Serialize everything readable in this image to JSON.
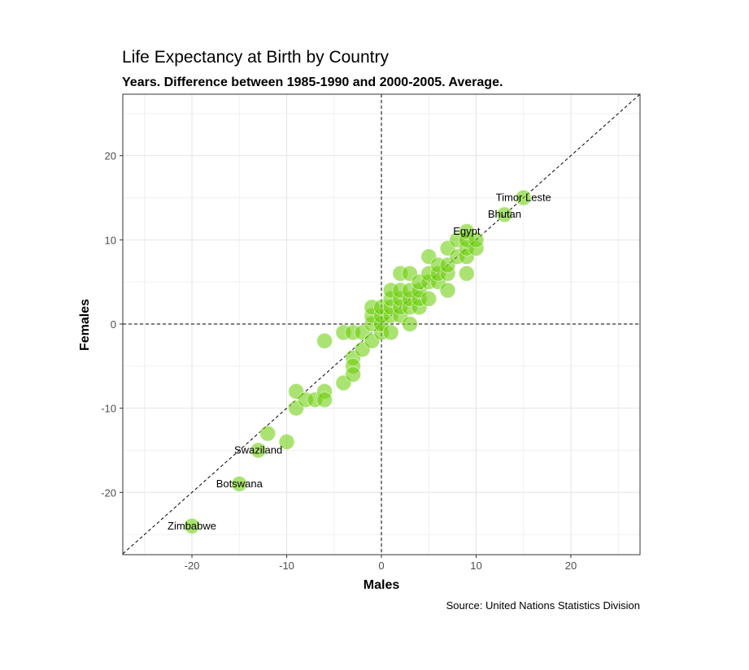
{
  "chart_data": {
    "type": "scatter",
    "title": "Life Expectancy at Birth by Country",
    "subtitle": "Years. Difference between 1985-1990 and 2000-2005. Average.",
    "xlabel": "Males",
    "ylabel": "Females",
    "caption": "Source: United Nations Statistics Division",
    "xlim": [
      -27.3,
      27.3
    ],
    "ylim": [
      -27.4,
      27.3
    ],
    "xticks": [
      -20,
      -10,
      0,
      10,
      20
    ],
    "yticks": [
      -20,
      -10,
      0,
      10,
      20
    ],
    "grid": true,
    "reference_lines": [
      "x=0",
      "y=0",
      "y=x"
    ],
    "point_color": "#66cc00",
    "points": [
      [
        -20,
        -24
      ],
      [
        -15,
        -19
      ],
      [
        -13,
        -15
      ],
      [
        -12,
        -13
      ],
      [
        -10,
        -14
      ],
      [
        -9,
        -8
      ],
      [
        -9,
        -10
      ],
      [
        -8,
        -9
      ],
      [
        -7,
        -9
      ],
      [
        -6,
        -8
      ],
      [
        -6,
        -9
      ],
      [
        -6,
        -2
      ],
      [
        -4,
        -7
      ],
      [
        -4,
        -1
      ],
      [
        -3,
        -1
      ],
      [
        -3,
        -4
      ],
      [
        -3,
        -5
      ],
      [
        -3,
        -6
      ],
      [
        -2,
        -3
      ],
      [
        -2,
        -1
      ],
      [
        -1,
        -2
      ],
      [
        -1,
        0
      ],
      [
        -1,
        1
      ],
      [
        -1,
        2
      ],
      [
        0,
        -1
      ],
      [
        0,
        0
      ],
      [
        0,
        1
      ],
      [
        0,
        2
      ],
      [
        1,
        -1
      ],
      [
        1,
        1
      ],
      [
        1,
        2
      ],
      [
        1,
        3
      ],
      [
        1,
        4
      ],
      [
        2,
        1
      ],
      [
        2,
        2
      ],
      [
        2,
        3
      ],
      [
        2,
        4
      ],
      [
        2,
        6
      ],
      [
        3,
        0
      ],
      [
        3,
        2
      ],
      [
        3,
        3
      ],
      [
        3,
        4
      ],
      [
        3,
        6
      ],
      [
        4,
        2
      ],
      [
        4,
        3
      ],
      [
        4,
        4
      ],
      [
        4,
        5
      ],
      [
        5,
        3
      ],
      [
        5,
        5
      ],
      [
        5,
        6
      ],
      [
        5,
        8
      ],
      [
        6,
        5
      ],
      [
        6,
        6
      ],
      [
        6,
        7
      ],
      [
        7,
        4
      ],
      [
        7,
        6
      ],
      [
        7,
        7
      ],
      [
        7,
        9
      ],
      [
        8,
        8
      ],
      [
        8,
        10
      ],
      [
        9,
        6
      ],
      [
        9,
        8
      ],
      [
        9,
        9
      ],
      [
        9,
        10
      ],
      [
        9,
        11
      ],
      [
        10,
        9
      ],
      [
        10,
        10
      ],
      [
        13,
        13
      ],
      [
        15,
        15
      ]
    ],
    "labels": [
      {
        "text": "Timor Leste",
        "x": 15,
        "y": 15
      },
      {
        "text": "Bhutan",
        "x": 13,
        "y": 13
      },
      {
        "text": "Egypt",
        "x": 9,
        "y": 11
      },
      {
        "text": "Swaziland",
        "x": -13,
        "y": -15
      },
      {
        "text": "Botswana",
        "x": -15,
        "y": -19
      },
      {
        "text": "Zimbabwe",
        "x": -20,
        "y": -24
      }
    ]
  }
}
